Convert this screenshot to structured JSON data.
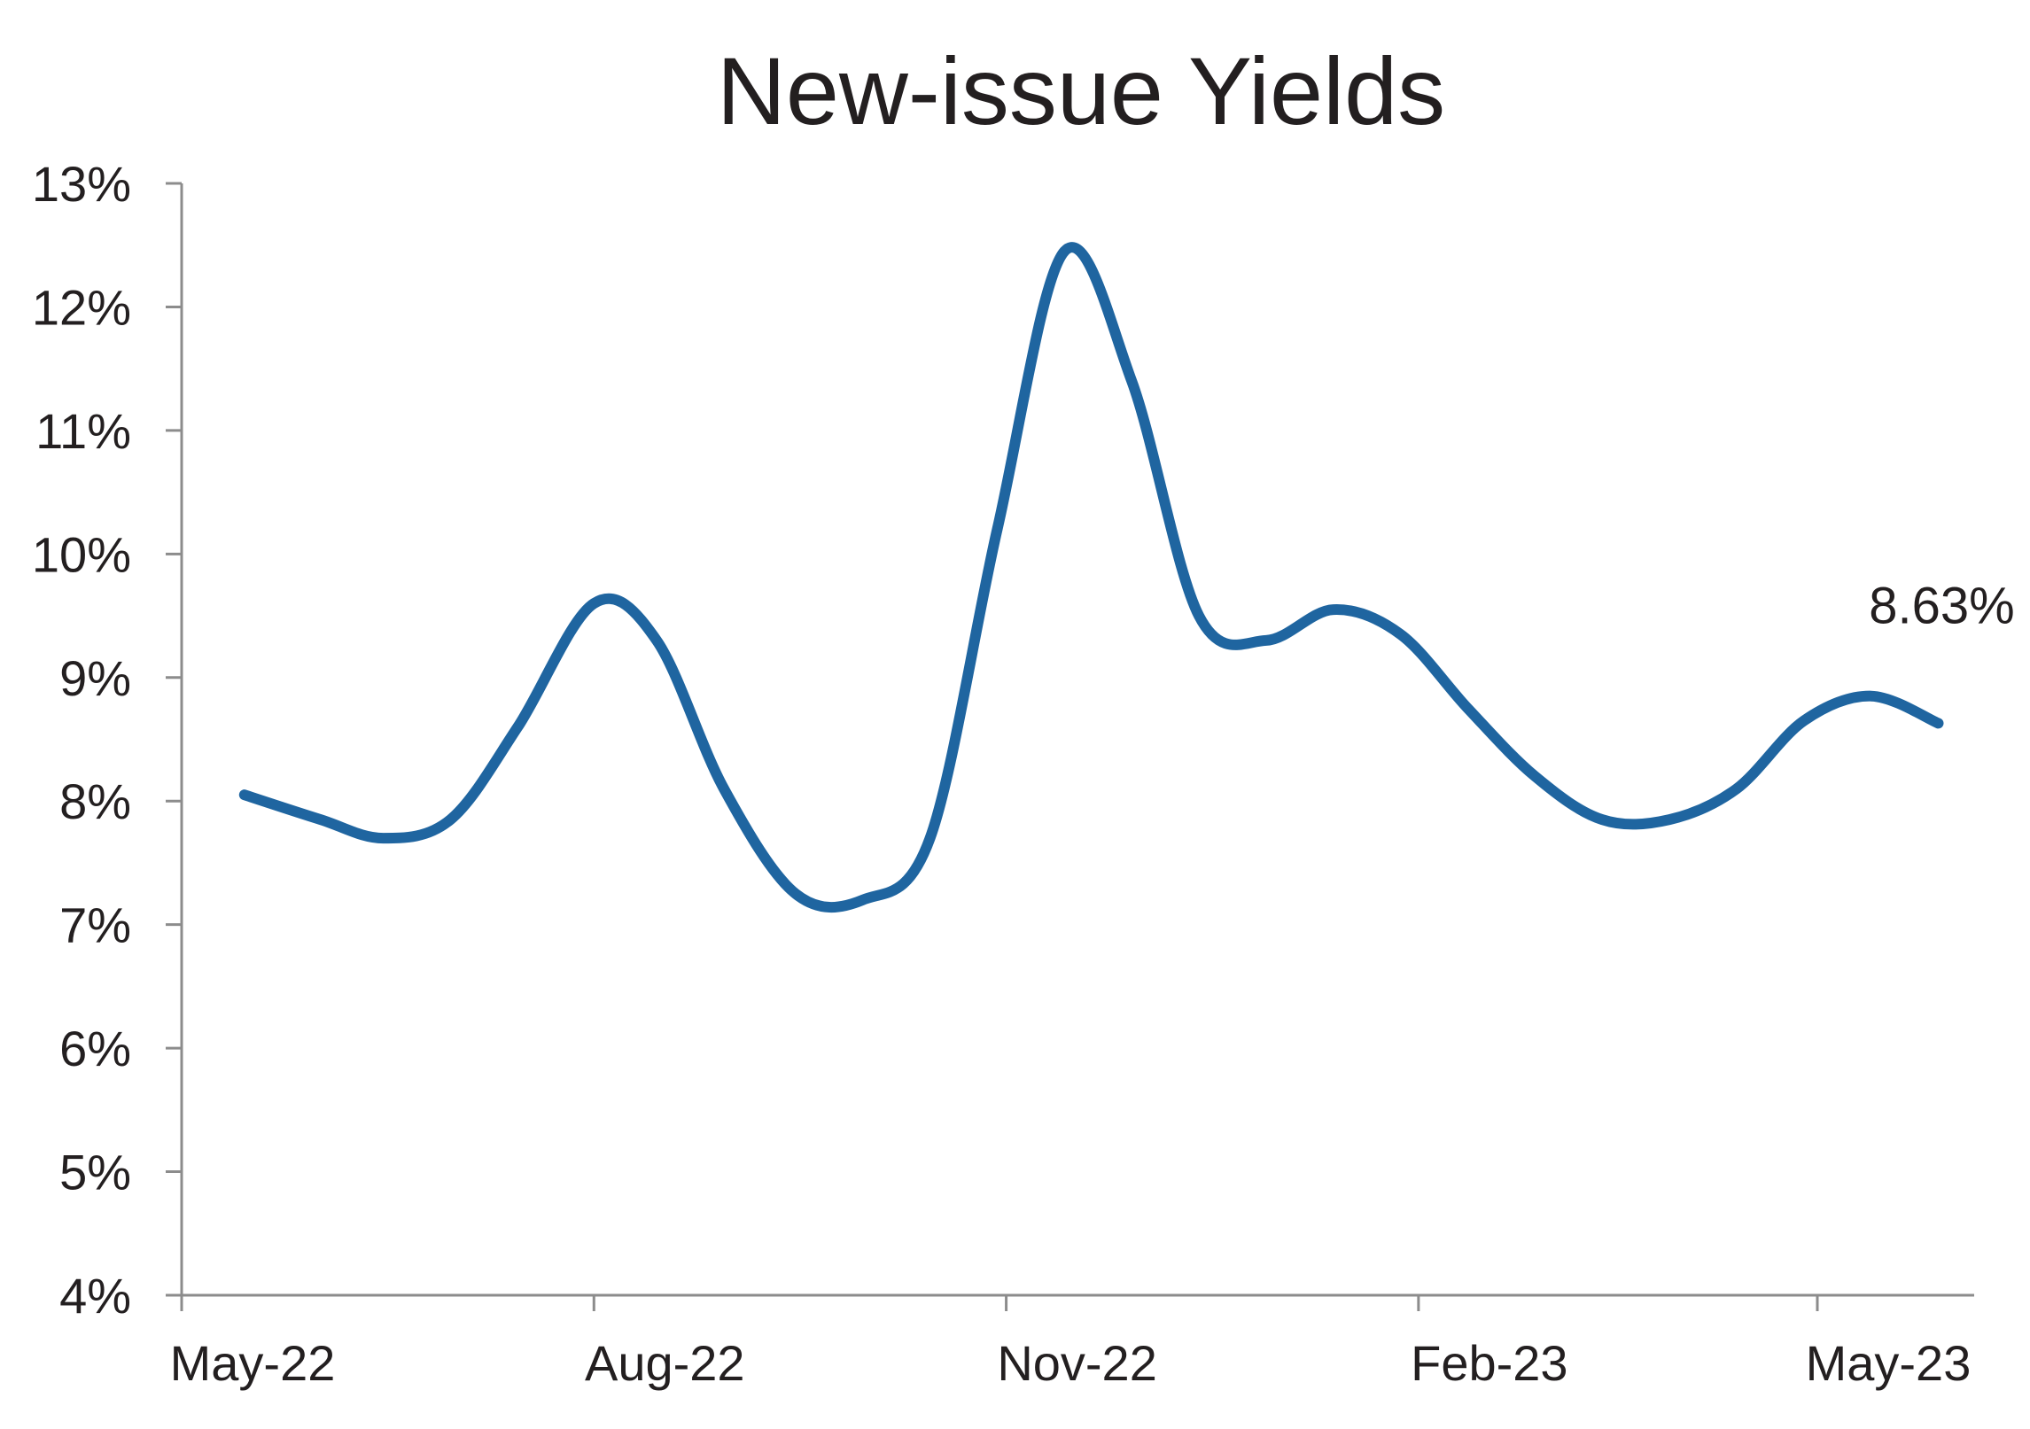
{
  "chart_data": {
    "type": "line",
    "title": "New-issue Yields",
    "xlabel": "",
    "ylabel": "",
    "x_ticks": [
      "May-22",
      "Aug-22",
      "Nov-22",
      "Feb-23",
      "May-23"
    ],
    "y_ticks": [
      "4%",
      "5%",
      "6%",
      "7%",
      "8%",
      "9%",
      "10%",
      "11%",
      "12%",
      "13%"
    ],
    "ylim": [
      4,
      13
    ],
    "xlim": [
      "2022-05-01",
      "2023-06-05"
    ],
    "grid": false,
    "legend": "none",
    "series": [
      {
        "color": "#1f65a0",
        "points": [
          {
            "x": "2022-05-15",
            "y": 8.05
          },
          {
            "x": "2022-06-01",
            "y": 7.85
          },
          {
            "x": "2022-06-15",
            "y": 7.7
          },
          {
            "x": "2022-06-30",
            "y": 7.85
          },
          {
            "x": "2022-07-15",
            "y": 8.6
          },
          {
            "x": "2022-08-01",
            "y": 9.6
          },
          {
            "x": "2022-08-15",
            "y": 9.3
          },
          {
            "x": "2022-08-30",
            "y": 8.1
          },
          {
            "x": "2022-09-15",
            "y": 7.25
          },
          {
            "x": "2022-09-30",
            "y": 7.2
          },
          {
            "x": "2022-10-15",
            "y": 7.7
          },
          {
            "x": "2022-10-30",
            "y": 10.2
          },
          {
            "x": "2022-11-14",
            "y": 12.45
          },
          {
            "x": "2022-11-29",
            "y": 11.4
          },
          {
            "x": "2022-12-14",
            "y": 9.5
          },
          {
            "x": "2022-12-29",
            "y": 9.3
          },
          {
            "x": "2023-01-13",
            "y": 9.55
          },
          {
            "x": "2023-01-28",
            "y": 9.35
          },
          {
            "x": "2023-02-12",
            "y": 8.75
          },
          {
            "x": "2023-02-27",
            "y": 8.2
          },
          {
            "x": "2023-03-14",
            "y": 7.85
          },
          {
            "x": "2023-03-29",
            "y": 7.85
          },
          {
            "x": "2023-04-13",
            "y": 8.1
          },
          {
            "x": "2023-04-28",
            "y": 8.65
          },
          {
            "x": "2023-05-13",
            "y": 8.85
          },
          {
            "x": "2023-05-28",
            "y": 8.63
          }
        ]
      }
    ],
    "annotations": [
      {
        "text": "8.63%",
        "x": "2023-05-28",
        "y": 8.63
      }
    ]
  }
}
